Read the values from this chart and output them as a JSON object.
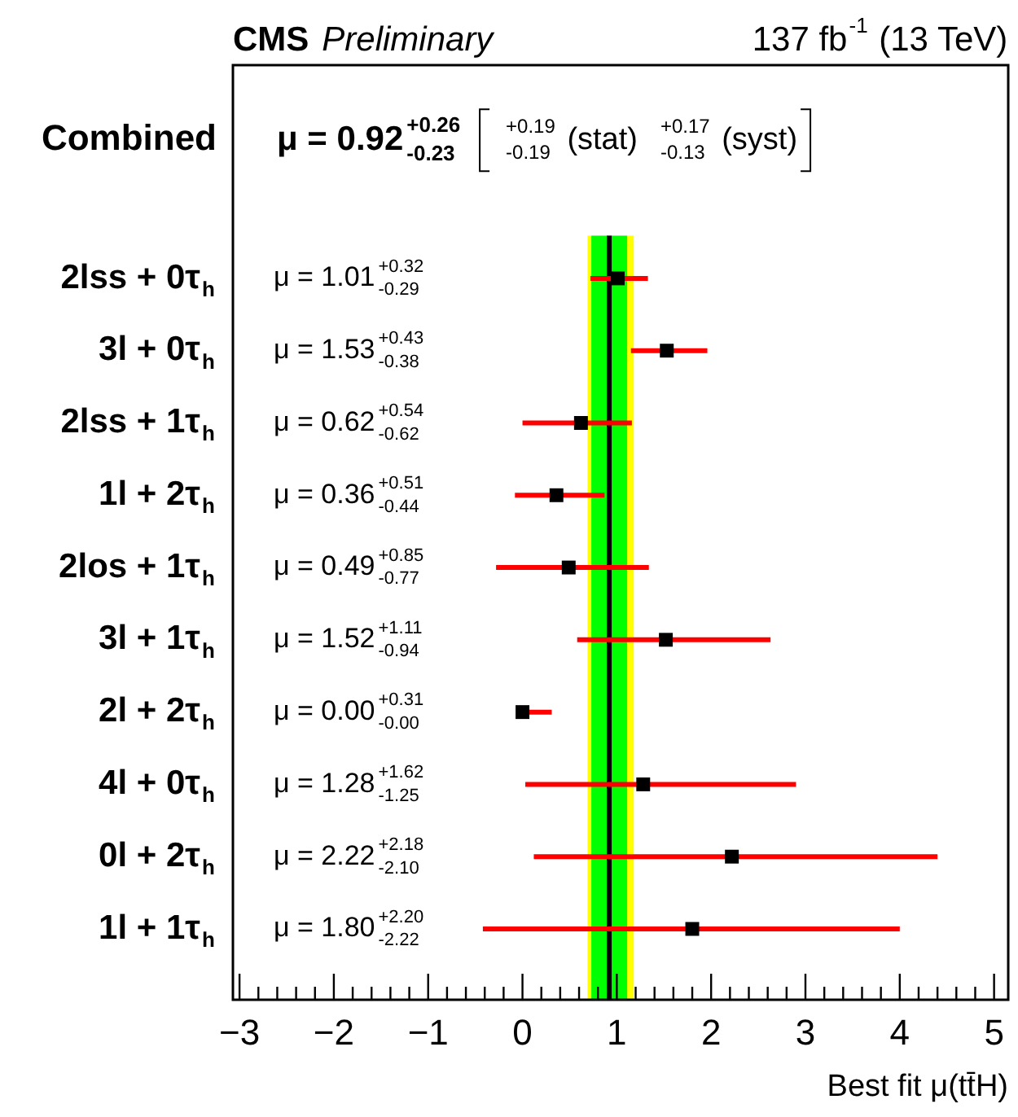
{
  "chart_data": {
    "type": "scatter",
    "orientation": "horizontal",
    "title": "CMS",
    "subtitle": "Preliminary",
    "xlabel": "Best fit μ(tt̄H)",
    "categories": [
      "2lss + 0τ$_{h}$",
      "3l + 0τ$_{h}$",
      "2lss + 1τ$_{h}$",
      "1l + 2τ$_{h}$",
      "2los + 1τ$_{h}$",
      "3l + 1τ$_{h}$",
      "2l + 2τ$_{h}$",
      "4l + 0τ$_{h}$",
      "0l + 2τ$_{h}$",
      "1l + 1τ$_{h}$"
    ],
    "series": [
      {
        "color": "#000000",
        "values": [
          1.01,
          1.53,
          0.62,
          0.36,
          0.49,
          1.52,
          0.0,
          1.28,
          2.22,
          1.8
        ],
        "errors": [
          [
            0.72,
            1.33
          ],
          [
            1.15,
            1.96
          ],
          [
            0.0,
            1.16
          ],
          [
            -0.08,
            0.87
          ],
          [
            -0.28,
            1.34
          ],
          [
            0.58,
            2.63
          ],
          [
            0.0,
            0.31
          ],
          [
            0.03,
            2.9
          ],
          [
            0.12,
            4.4
          ],
          [
            -0.42,
            4.0
          ]
        ]
      }
    ],
    "marker": "square",
    "xlim": [
      -3.07,
      5.15
    ],
    "xticks": [
      -3,
      {
        "value": -2.8,
        "label": null
      },
      {
        "value": -2.6,
        "label": null
      },
      {
        "value": -2.4,
        "label": null
      },
      {
        "value": -2.2,
        "label": null
      },
      -2,
      {
        "value": -1.8,
        "label": null
      },
      {
        "value": -1.6,
        "label": null
      },
      {
        "value": -1.4,
        "label": null
      },
      {
        "value": -1.2,
        "label": null
      },
      -1,
      {
        "value": -0.8,
        "label": null
      },
      {
        "value": -0.6,
        "label": null
      },
      {
        "value": -0.4,
        "label": null
      },
      {
        "value": -0.2,
        "label": null
      },
      0,
      {
        "value": 0.2,
        "label": null
      },
      {
        "value": 0.4,
        "label": null
      },
      {
        "value": 0.6,
        "label": null
      },
      {
        "value": 0.8,
        "label": null
      },
      1,
      {
        "value": 1.2,
        "label": null
      },
      {
        "value": 1.4,
        "label": null
      },
      {
        "value": 1.6,
        "label": null
      },
      {
        "value": 1.8,
        "label": null
      },
      2,
      {
        "value": 2.2,
        "label": null
      },
      {
        "value": 2.4,
        "label": null
      },
      {
        "value": 2.6,
        "label": null
      },
      {
        "value": 2.8,
        "label": null
      },
      3,
      {
        "value": 3.2,
        "label": null
      },
      {
        "value": 3.4,
        "label": null
      },
      {
        "value": 3.6,
        "label": null
      },
      {
        "value": 3.8,
        "label": null
      },
      4,
      {
        "value": 4.2,
        "label": null
      },
      {
        "value": 4.4,
        "label": null
      },
      {
        "value": 4.6,
        "label": null
      },
      {
        "value": 4.8,
        "label": null
      },
      5
    ],
    "ref_lines": [
      {
        "axis": "x",
        "value": 0.92,
        "color": "#000000"
      }
    ],
    "bands": [
      {
        "axis": "x",
        "from": 0.69,
        "to": 1.18,
        "color": "#ffff00"
      },
      {
        "axis": "x",
        "from": 0.73,
        "to": 1.11,
        "color": "#00ff00"
      }
    ],
    "annotations": [
      "137 fb$^{-1}$ (13 TeV)",
      "Combined",
      "μ = 0.92$^{+0.26}$$_{-0.23}$",
      "$^{+0.19}$$_{-0.19}$ (stat)",
      "$^{+0.17}$$_{-0.13}$ (syst)",
      "μ = 1.01$^{+0.32}$$_{-0.29}$",
      "μ = 1.53$^{+0.43}$$_{-0.38}$",
      "μ = 0.62$^{+0.54}$$_{-0.62}$",
      "μ = 0.36$^{+0.51}$$_{-0.44}$",
      "μ = 0.49$^{+0.85}$$_{-0.77}$",
      "μ = 1.52$^{+1.11}$$_{-0.94}$",
      "μ = 0.00$^{+0.31}$$_{-0.00}$",
      "μ = 1.28$^{+1.62}$$_{-1.25}$",
      "μ = 2.22$^{+2.18}$$_{-2.10}$",
      "μ = 1.80$^{+2.20}$$_{-2.22}$"
    ],
    "legend": false
  }
}
